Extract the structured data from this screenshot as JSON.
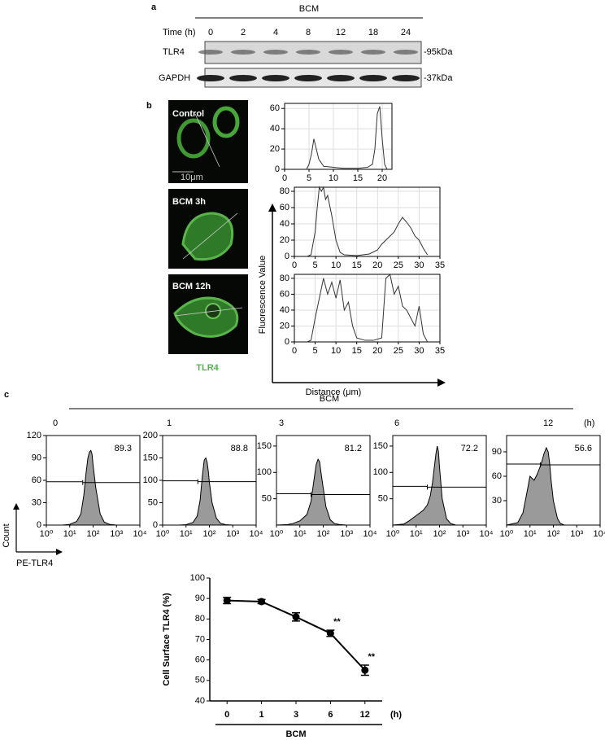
{
  "panel_a": {
    "label": "a",
    "group": "BCM",
    "axis_label": "Time (h)",
    "times": [
      "0",
      "2",
      "4",
      "8",
      "12",
      "18",
      "24"
    ],
    "rows": [
      {
        "name": "TLR4",
        "size": "-95kDa"
      },
      {
        "name": "GAPDH",
        "size": "-37kDa"
      }
    ]
  },
  "panel_b": {
    "label": "b",
    "images": [
      "Control",
      "BCM 3h",
      "BCM 12h"
    ],
    "scale_bar": "10μm",
    "stain": "TLR4",
    "y_label": "Fluorescence Value",
    "x_label": "Distance (μm)"
  },
  "panel_c": {
    "label": "c",
    "group": "BCM",
    "unit": "(h)",
    "y_label": "Count",
    "x_label": "PE-TLR4"
  },
  "chart_data": [
    {
      "type": "line",
      "frame": true,
      "grid": true,
      "xlim": [
        0,
        22
      ],
      "xticks": [
        0,
        5,
        10,
        15,
        20
      ],
      "ylim": [
        0,
        65
      ],
      "yticks": [
        0,
        20,
        40,
        60
      ],
      "x": [
        4.5,
        5,
        5.5,
        6,
        6.5,
        7,
        8,
        10,
        12,
        15,
        17,
        18,
        18.5,
        19,
        19.5,
        20,
        20.5,
        21
      ],
      "values": [
        0,
        5,
        15,
        30,
        20,
        10,
        3,
        2,
        1,
        1,
        2,
        5,
        20,
        55,
        62,
        30,
        5,
        0
      ]
    },
    {
      "type": "line",
      "frame": true,
      "grid": true,
      "xlim": [
        0,
        35
      ],
      "xticks": [
        0,
        5,
        10,
        15,
        20,
        25,
        30,
        35
      ],
      "ylim": [
        0,
        85
      ],
      "yticks": [
        0,
        20,
        40,
        60,
        80
      ],
      "x": [
        3,
        4,
        5,
        5.5,
        6,
        6.5,
        7,
        7.5,
        8,
        9,
        10,
        11,
        12,
        15,
        18,
        20,
        21,
        22,
        23,
        24,
        25,
        26,
        27,
        28,
        29,
        30,
        31,
        32
      ],
      "values": [
        0,
        2,
        30,
        60,
        85,
        80,
        85,
        70,
        75,
        50,
        20,
        5,
        2,
        1,
        3,
        8,
        15,
        20,
        25,
        30,
        40,
        48,
        42,
        35,
        25,
        20,
        10,
        2
      ]
    },
    {
      "type": "line",
      "frame": true,
      "grid": true,
      "xlim": [
        0,
        35
      ],
      "xticks": [
        0,
        5,
        10,
        15,
        20,
        25,
        30,
        35
      ],
      "ylim": [
        0,
        85
      ],
      "yticks": [
        0,
        20,
        40,
        60,
        80
      ],
      "x": [
        3,
        4,
        5,
        6,
        7,
        8,
        9,
        10,
        11,
        12,
        13,
        14,
        15,
        17,
        19,
        21,
        22,
        23,
        24,
        25,
        26,
        27,
        28,
        29,
        30,
        31,
        32
      ],
      "values": [
        0,
        2,
        30,
        55,
        80,
        60,
        75,
        55,
        78,
        40,
        50,
        20,
        5,
        2,
        2,
        5,
        80,
        85,
        60,
        70,
        45,
        40,
        30,
        20,
        45,
        10,
        0
      ]
    },
    {
      "type": "area",
      "title": "0",
      "percent": 89.3,
      "frame": true,
      "xscale": "log",
      "xlim": [
        1,
        10000
      ],
      "xticks": [
        {
          "value": 1,
          "label": "10⁰"
        },
        {
          "value": 10,
          "label": "10¹"
        },
        {
          "value": 100,
          "label": "10²"
        },
        {
          "value": 1000,
          "label": "10³"
        },
        {
          "value": 10000,
          "label": "10⁴"
        }
      ],
      "ylim": [
        0,
        120
      ],
      "yticks": [
        0,
        30,
        60,
        90,
        120
      ],
      "gate_x": [
        36,
        10000
      ],
      "gate_y": 57,
      "x": [
        1,
        5,
        10,
        20,
        30,
        40,
        50,
        60,
        70,
        80,
        90,
        100,
        130,
        200,
        300,
        500,
        1000
      ],
      "values": [
        0,
        0,
        1,
        5,
        15,
        40,
        70,
        90,
        98,
        100,
        95,
        80,
        50,
        15,
        4,
        1,
        0
      ]
    },
    {
      "type": "area",
      "title": "1",
      "percent": 88.8,
      "frame": true,
      "xscale": "log",
      "xlim": [
        1,
        10000
      ],
      "xticks": [
        {
          "value": 1,
          "label": "10⁰"
        },
        {
          "value": 10,
          "label": "10¹"
        },
        {
          "value": 100,
          "label": "10²"
        },
        {
          "value": 1000,
          "label": "10³"
        },
        {
          "value": 10000,
          "label": "10⁴"
        }
      ],
      "ylim": [
        0,
        200
      ],
      "yticks": [
        0,
        50,
        100,
        150,
        200
      ],
      "gate_x": [
        32,
        10000
      ],
      "gate_y": 97,
      "x": [
        1,
        5,
        10,
        20,
        30,
        40,
        50,
        60,
        70,
        80,
        90,
        100,
        130,
        200,
        300,
        500,
        1000
      ],
      "values": [
        0,
        0,
        1,
        6,
        20,
        55,
        110,
        145,
        150,
        140,
        120,
        95,
        50,
        15,
        4,
        1,
        0
      ]
    },
    {
      "type": "area",
      "title": "3",
      "percent": 81.2,
      "frame": true,
      "xscale": "log",
      "xlim": [
        1,
        10000
      ],
      "xticks": [
        {
          "value": 1,
          "label": "10⁰"
        },
        {
          "value": 10,
          "label": "10¹"
        },
        {
          "value": 100,
          "label": "10²"
        },
        {
          "value": 1000,
          "label": "10³"
        },
        {
          "value": 10000,
          "label": "10⁴"
        }
      ],
      "ylim": [
        0,
        170
      ],
      "yticks": [
        50,
        100,
        150
      ],
      "gate_x": [
        30,
        10000
      ],
      "gate_y": 58,
      "x": [
        1,
        3,
        5,
        10,
        20,
        30,
        40,
        50,
        60,
        70,
        80,
        100,
        130,
        200,
        300,
        500,
        1000
      ],
      "values": [
        0,
        1,
        3,
        8,
        20,
        45,
        85,
        115,
        125,
        120,
        100,
        70,
        35,
        10,
        3,
        1,
        0
      ]
    },
    {
      "type": "area",
      "title": "6",
      "percent": 72.2,
      "frame": true,
      "xscale": "log",
      "xlim": [
        1,
        10000
      ],
      "xticks": [
        {
          "value": 1,
          "label": "10⁰"
        },
        {
          "value": 10,
          "label": "10¹"
        },
        {
          "value": 100,
          "label": "10²"
        },
        {
          "value": 1000,
          "label": "10³"
        },
        {
          "value": 10000,
          "label": "10⁴"
        }
      ],
      "ylim": [
        0,
        170
      ],
      "yticks": [
        50,
        100,
        150
      ],
      "gate_x": [
        30,
        10000
      ],
      "gate_y": 72,
      "x": [
        1,
        3,
        5,
        10,
        20,
        30,
        40,
        50,
        60,
        70,
        80,
        90,
        100,
        130,
        200,
        300,
        500
      ],
      "values": [
        0,
        2,
        8,
        18,
        28,
        38,
        55,
        80,
        110,
        135,
        150,
        140,
        110,
        50,
        12,
        3,
        0
      ]
    },
    {
      "type": "area",
      "title": "12",
      "percent": 56.6,
      "frame": true,
      "xscale": "log",
      "xlim": [
        1,
        10000
      ],
      "xticks": [
        {
          "value": 1,
          "label": "10⁰"
        },
        {
          "value": 10,
          "label": "10¹"
        },
        {
          "value": 100,
          "label": "10²"
        },
        {
          "value": 1000,
          "label": "10³"
        },
        {
          "value": 10000,
          "label": "10⁴"
        }
      ],
      "ylim": [
        0,
        110
      ],
      "yticks": [
        30,
        60,
        90
      ],
      "gate_x": [
        28,
        10000
      ],
      "gate_y": 74,
      "x": [
        1,
        3,
        5,
        8,
        10,
        15,
        20,
        30,
        40,
        50,
        60,
        70,
        80,
        100,
        150,
        200,
        300
      ],
      "values": [
        0,
        3,
        15,
        45,
        60,
        55,
        62,
        75,
        88,
        95,
        90,
        75,
        55,
        30,
        8,
        2,
        0
      ]
    },
    {
      "type": "line",
      "categories": [
        "0",
        "1",
        "3",
        "6",
        "12"
      ],
      "values": [
        89,
        88.5,
        81,
        73,
        55
      ],
      "errors": [
        1.5,
        1,
        2,
        1.5,
        2.5
      ],
      "significance": [
        null,
        null,
        null,
        "**",
        "**"
      ],
      "ylim": [
        40,
        100
      ],
      "yticks": [
        40,
        50,
        60,
        70,
        80,
        90,
        100
      ],
      "y_label": "Cell Surface TLR4 (%)",
      "x_label": "BCM",
      "x_unit": "(h)"
    }
  ]
}
